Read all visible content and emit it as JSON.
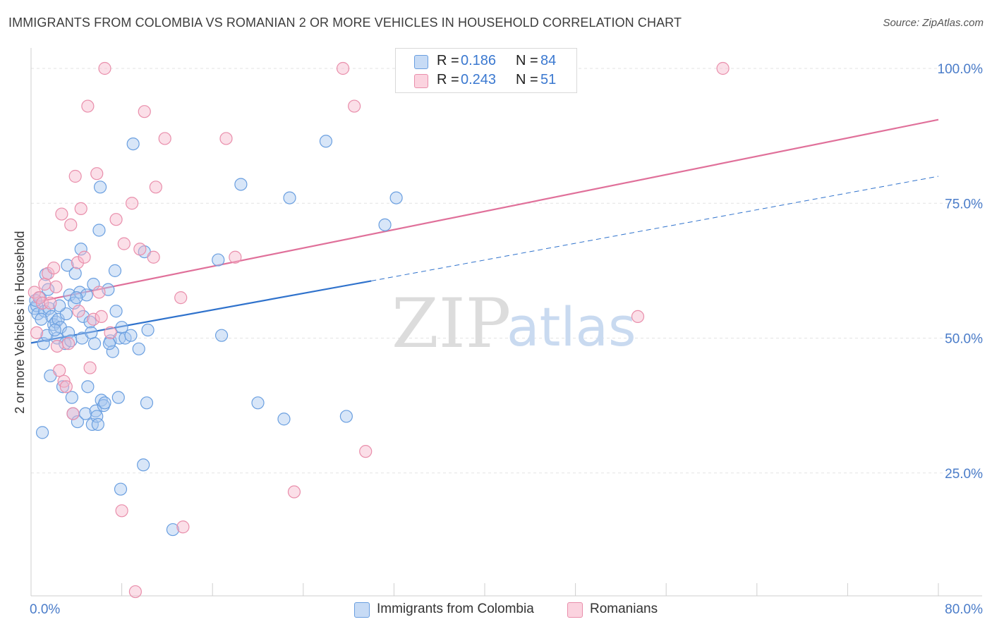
{
  "title": "IMMIGRANTS FROM COLOMBIA VS ROMANIAN 2 OR MORE VEHICLES IN HOUSEHOLD CORRELATION CHART",
  "source": "Source: ZipAtlas.com",
  "watermark": {
    "zip": "ZIP",
    "atlas": "atlas"
  },
  "legend_top": [
    {
      "r_label": "R =",
      "r_value": "0.186",
      "n_label": "N =",
      "n_value": "84",
      "color": "#a8c8f0"
    },
    {
      "r_label": "R =",
      "r_value": "0.243",
      "n_label": "N =",
      "n_value": "51",
      "color": "#f7b8cb"
    }
  ],
  "legend_bottom": [
    {
      "label": "Immigrants from Colombia",
      "color": "#a8c8f0"
    },
    {
      "label": "Romanians",
      "color": "#f7b8cb"
    }
  ],
  "chart_data": {
    "type": "scatter",
    "title": "IMMIGRANTS FROM COLOMBIA VS ROMANIAN 2 OR MORE VEHICLES IN HOUSEHOLD CORRELATION CHART",
    "xlabel": "",
    "ylabel": "2 or more Vehicles in Household",
    "xlim": [
      0,
      80
    ],
    "ylim": [
      0,
      100
    ],
    "x_tick_labels": [
      "0.0%",
      "80.0%"
    ],
    "y_ticks": [
      25,
      50,
      75,
      100
    ],
    "y_tick_labels": [
      "25.0%",
      "50.0%",
      "75.0%",
      "100.0%"
    ],
    "grid": true,
    "series": [
      {
        "name": "Immigrants from Colombia",
        "color": "#6a9fe0",
        "fill": "#a8c8f0",
        "trend": {
          "x": [
            0,
            30
          ],
          "y": [
            49.1,
            60.6
          ],
          "dashed_to": [
            80,
            80.0
          ],
          "color": "#2f72cc"
        },
        "points": [
          [
            0.3,
            55.5
          ],
          [
            0.5,
            56.0
          ],
          [
            0.6,
            54.5
          ],
          [
            0.8,
            57.5
          ],
          [
            1.0,
            32.5
          ],
          [
            1.1,
            49.0
          ],
          [
            1.2,
            55.0
          ],
          [
            1.3,
            61.8
          ],
          [
            1.4,
            50.5
          ],
          [
            1.6,
            55.5
          ],
          [
            1.7,
            43.0
          ],
          [
            1.8,
            54.0
          ],
          [
            2.0,
            52.5
          ],
          [
            2.2,
            53.0
          ],
          [
            2.3,
            50.0
          ],
          [
            2.4,
            53.5
          ],
          [
            2.6,
            52.0
          ],
          [
            2.8,
            41.0
          ],
          [
            3.0,
            49.0
          ],
          [
            3.1,
            54.5
          ],
          [
            3.2,
            63.5
          ],
          [
            3.3,
            51.0
          ],
          [
            3.4,
            58.0
          ],
          [
            3.5,
            49.5
          ],
          [
            3.6,
            39.0
          ],
          [
            3.7,
            36.0
          ],
          [
            3.8,
            56.5
          ],
          [
            3.9,
            62.0
          ],
          [
            4.1,
            34.5
          ],
          [
            4.3,
            58.5
          ],
          [
            4.4,
            66.5
          ],
          [
            4.5,
            50.0
          ],
          [
            4.6,
            54.0
          ],
          [
            4.8,
            36.0
          ],
          [
            4.9,
            58.0
          ],
          [
            5.0,
            41.0
          ],
          [
            5.2,
            53.0
          ],
          [
            5.4,
            34.0
          ],
          [
            5.5,
            60.0
          ],
          [
            5.6,
            49.0
          ],
          [
            5.7,
            36.5
          ],
          [
            5.8,
            35.5
          ],
          [
            5.9,
            34.0
          ],
          [
            6.0,
            70.0
          ],
          [
            6.1,
            78.0
          ],
          [
            6.2,
            38.5
          ],
          [
            6.4,
            37.5
          ],
          [
            6.5,
            38.0
          ],
          [
            6.8,
            59.0
          ],
          [
            7.0,
            49.5
          ],
          [
            7.2,
            47.5
          ],
          [
            7.4,
            62.5
          ],
          [
            7.5,
            55.0
          ],
          [
            7.7,
            39.0
          ],
          [
            7.8,
            50.0
          ],
          [
            7.9,
            22.0
          ],
          [
            8.0,
            52.0
          ],
          [
            8.3,
            50.0
          ],
          [
            9.0,
            86.0
          ],
          [
            9.5,
            48.0
          ],
          [
            9.9,
            26.5
          ],
          [
            10.0,
            66.0
          ],
          [
            10.2,
            38.0
          ],
          [
            12.5,
            14.5
          ],
          [
            16.5,
            64.5
          ],
          [
            16.8,
            50.5
          ],
          [
            18.5,
            78.5
          ],
          [
            20.0,
            38.0
          ],
          [
            22.3,
            35.0
          ],
          [
            22.8,
            76.0
          ],
          [
            26.0,
            86.5
          ],
          [
            27.8,
            35.5
          ],
          [
            31.2,
            71.0
          ],
          [
            32.2,
            76.0
          ],
          [
            0.4,
            57.0
          ],
          [
            0.9,
            53.5
          ],
          [
            1.5,
            59.0
          ],
          [
            2.1,
            51.5
          ],
          [
            2.5,
            56.0
          ],
          [
            4.0,
            57.5
          ],
          [
            5.3,
            51.0
          ],
          [
            6.9,
            49.0
          ],
          [
            8.8,
            50.5
          ],
          [
            10.3,
            51.5
          ]
        ]
      },
      {
        "name": "Romanians",
        "color": "#e98eab",
        "fill": "#f7b8cb",
        "trend": {
          "x": [
            0,
            80
          ],
          "y": [
            56.5,
            90.5
          ],
          "color": "#e0709a"
        },
        "points": [
          [
            0.3,
            58.5
          ],
          [
            0.5,
            51.0
          ],
          [
            0.7,
            57.5
          ],
          [
            1.0,
            56.5
          ],
          [
            1.2,
            60.0
          ],
          [
            1.5,
            62.0
          ],
          [
            1.7,
            56.5
          ],
          [
            2.0,
            63.0
          ],
          [
            2.3,
            48.5
          ],
          [
            2.5,
            44.0
          ],
          [
            2.7,
            73.0
          ],
          [
            2.9,
            42.0
          ],
          [
            3.1,
            41.0
          ],
          [
            3.3,
            49.0
          ],
          [
            3.5,
            71.0
          ],
          [
            3.7,
            36.0
          ],
          [
            3.9,
            80.0
          ],
          [
            4.1,
            64.0
          ],
          [
            4.4,
            74.0
          ],
          [
            4.7,
            65.0
          ],
          [
            5.0,
            93.0
          ],
          [
            5.2,
            44.5
          ],
          [
            5.5,
            53.5
          ],
          [
            5.8,
            80.5
          ],
          [
            6.0,
            58.5
          ],
          [
            6.2,
            54.0
          ],
          [
            6.5,
            100.0
          ],
          [
            7.0,
            51.0
          ],
          [
            7.5,
            72.0
          ],
          [
            8.0,
            18.0
          ],
          [
            8.2,
            67.5
          ],
          [
            8.9,
            75.0
          ],
          [
            9.2,
            3.0
          ],
          [
            9.6,
            66.5
          ],
          [
            10.0,
            92.0
          ],
          [
            10.8,
            65.0
          ],
          [
            11.0,
            78.0
          ],
          [
            11.8,
            87.0
          ],
          [
            13.2,
            57.5
          ],
          [
            13.4,
            15.0
          ],
          [
            17.2,
            87.0
          ],
          [
            18.0,
            65.0
          ],
          [
            23.2,
            21.5
          ],
          [
            27.5,
            100.0
          ],
          [
            28.5,
            93.0
          ],
          [
            29.5,
            29.0
          ],
          [
            36.0,
            100.0
          ],
          [
            53.5,
            54.0
          ],
          [
            61.0,
            100.0
          ],
          [
            4.2,
            55.0
          ],
          [
            2.2,
            59.5
          ]
        ]
      }
    ]
  }
}
